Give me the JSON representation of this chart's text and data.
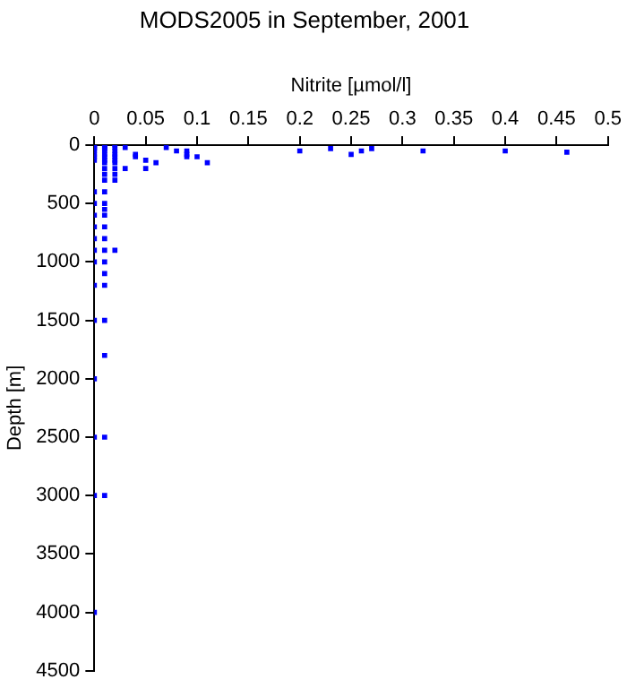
{
  "chart_data": {
    "type": "scatter",
    "title": "MODS2005 in September, 2001",
    "xlabel": "Nitrite [µmol/l]",
    "ylabel": "Depth [m]",
    "x": [
      0,
      0,
      0,
      0,
      0,
      0,
      0,
      0,
      0,
      0,
      0,
      0,
      0,
      0,
      0,
      0,
      0,
      0,
      0,
      0,
      0,
      0.01,
      0.01,
      0.01,
      0.01,
      0.01,
      0.01,
      0.01,
      0.01,
      0.01,
      0.01,
      0.01,
      0.01,
      0.01,
      0.01,
      0.01,
      0.01,
      0.01,
      0.01,
      0.01,
      0.01,
      0.01,
      0.01,
      0.01,
      0.01,
      0.01,
      0.01,
      0.02,
      0.02,
      0.02,
      0.02,
      0.02,
      0.02,
      0.02,
      0.02,
      0.02,
      0.02,
      0.02,
      0.03,
      0.03,
      0.04,
      0.04,
      0.05,
      0.05,
      0.06,
      0.07,
      0.08,
      0.09,
      0.09,
      0.09,
      0.1,
      0.11,
      0.2,
      0.23,
      0.25,
      0.26,
      0.27,
      0.32,
      0.4,
      0.46
    ],
    "series": [
      {
        "color": "#0000ff",
        "values": [
          0,
          10,
          20,
          30,
          50,
          80,
          100,
          130,
          400,
          500,
          600,
          700,
          800,
          900,
          1000,
          1200,
          1500,
          2000,
          2500,
          3000,
          4000,
          0,
          10,
          20,
          30,
          50,
          80,
          100,
          130,
          150,
          200,
          250,
          300,
          400,
          500,
          550,
          600,
          700,
          800,
          900,
          1000,
          1100,
          1200,
          1500,
          1800,
          2500,
          3000,
          0,
          20,
          50,
          80,
          100,
          130,
          150,
          200,
          250,
          300,
          900,
          20,
          200,
          80,
          100,
          130,
          200,
          150,
          20,
          50,
          50,
          80,
          100,
          100,
          150,
          50,
          30,
          80,
          50,
          30,
          50,
          50,
          60
        ]
      }
    ],
    "xlim": [
      0,
      0.5
    ],
    "xticks": [
      0,
      0.05,
      0.1,
      0.15,
      0.2,
      0.25,
      0.3,
      0.35,
      0.4,
      0.45,
      0.5
    ],
    "ylim": [
      4500,
      0
    ],
    "yticks": [
      0,
      500,
      1000,
      1500,
      2000,
      2500,
      3000,
      3500,
      4000,
      4500
    ],
    "grid": false,
    "legend": false,
    "marker": "square"
  }
}
